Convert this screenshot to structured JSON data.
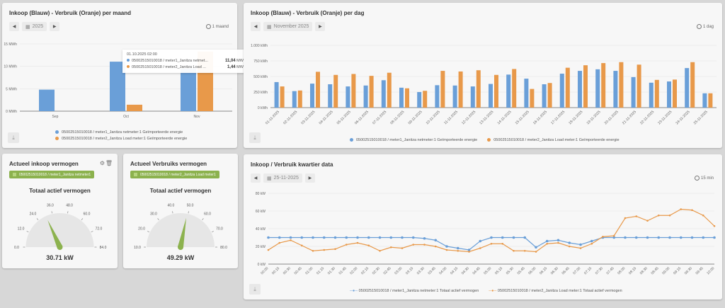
{
  "monthly": {
    "title": "Inkoop (Blauw) - Verbruik (Oranje) per maand",
    "date": "2025",
    "interval": "1 maand",
    "tooltip": {
      "date": "01.10.2025 02:00",
      "rows": [
        {
          "label": "05002515010018 / meter1_Janitza netmet...",
          "value": "11,04",
          "unit": "MWh"
        },
        {
          "label": "05002515010018 / meter2_Janitza Load ...",
          "value": "1,44",
          "unit": "MWh"
        }
      ]
    }
  },
  "daily": {
    "title": "Inkoop (Blauw) - Verbruik (Oranje) per dag",
    "date": "November 2025",
    "interval": "1 dag"
  },
  "gauge1": {
    "title": "Actueel inkoop vermogen",
    "chip": "05002515010018 / meter1_Janitza netmeter1",
    "subtitle": "Totaal actief vermogen",
    "value_label": "30.71 kW",
    "value": 30.71,
    "min": 0,
    "max": 84,
    "ticks": [
      "0.0",
      "12.0",
      "24.0",
      "36.0",
      "48.0",
      "60.0",
      "72.0",
      "84.0"
    ]
  },
  "gauge2": {
    "title": "Actueel Verbruiks vermogen",
    "chip": "05002515010018 / meter2_Janitza Load meter1",
    "subtitle": "Totaal actief vermogen",
    "value_label": "49.29 kW",
    "value": 49.29,
    "min": 10,
    "max": 80,
    "ticks": [
      "10.0",
      "20.0",
      "30.0",
      "40.0",
      "50.0",
      "60.0",
      "70.0",
      "80.0"
    ]
  },
  "quarter": {
    "title": "Inkoop / Verbruik kwartier data",
    "date": "25-11-2025",
    "interval": "15 min"
  },
  "colors": {
    "blue": "#6a9fd8",
    "orange": "#e8994a",
    "green": "#8cb24e"
  },
  "chart_data": [
    {
      "type": "bar",
      "title": "Inkoop (Blauw) - Verbruik (Oranje) per maand",
      "categories": [
        "Sep",
        "Oct",
        "Nov"
      ],
      "yticks": [
        "0 MWh",
        "5 MWh",
        "10 MWh",
        "15 MWh"
      ],
      "ylim": [
        0,
        15
      ],
      "series": [
        {
          "name": "05002515010018 / meter1_Janitza netmeter:1 Geïmporteerde energie",
          "values": [
            4.8,
            11.04,
            9.5
          ]
        },
        {
          "name": "05002515010018 / meter2_Janitza Load meter:1 Geïmporteerde energie",
          "values": [
            0,
            1.44,
            13.3
          ]
        }
      ]
    },
    {
      "type": "bar",
      "title": "Inkoop (Blauw) - Verbruik (Oranje) per dag",
      "categories": [
        "01-11-2025",
        "02-11-2025",
        "03-11-2025",
        "04-11-2025",
        "05-11-2025",
        "06-11-2025",
        "07-11-2025",
        "08-11-2025",
        "09-11-2025",
        "10-11-2025",
        "11-11-2025",
        "12-11-2025",
        "13-11-2025",
        "14-11-2025",
        "15-11-2025",
        "16-11-2025",
        "17-11-2025",
        "18-11-2025",
        "19-11-2025",
        "20-11-2025",
        "21-11-2025",
        "22-11-2025",
        "23-11-2025",
        "24-11-2025",
        "25-11-2025"
      ],
      "yticks": [
        "0 kWh",
        "250 kWh",
        "500 kWh",
        "750 kWh",
        "1.000 kWh"
      ],
      "ylim": [
        0,
        1000
      ],
      "series": [
        {
          "name": "05002515010018 / meter1_Janitza netmeter:1 Geïmporteerde energie",
          "values": [
            410,
            265,
            385,
            375,
            340,
            355,
            440,
            320,
            250,
            360,
            355,
            340,
            380,
            530,
            465,
            375,
            545,
            590,
            615,
            590,
            490,
            400,
            420,
            635,
            230
          ]
        },
        {
          "name": "05002515010018 / meter2_Janitza Load meter:1 Geïmporteerde energie",
          "values": [
            340,
            275,
            575,
            525,
            540,
            510,
            560,
            310,
            270,
            590,
            580,
            600,
            525,
            620,
            300,
            395,
            640,
            680,
            715,
            730,
            690,
            445,
            450,
            730,
            230
          ]
        }
      ]
    },
    {
      "type": "line",
      "title": "Inkoop / Verbruik kwartier data",
      "x": [
        "00:00",
        "00:15",
        "00:30",
        "00:45",
        "01:00",
        "01:15",
        "01:30",
        "01:45",
        "02:00",
        "02:15",
        "02:30",
        "02:45",
        "03:00",
        "03:15",
        "03:30",
        "03:45",
        "04:00",
        "04:15",
        "04:30",
        "04:45",
        "05:00",
        "05:15",
        "05:30",
        "05:45",
        "06:00",
        "06:15",
        "06:30",
        "06:45",
        "07:00",
        "07:15",
        "07:30",
        "07:45",
        "08:00",
        "08:15",
        "08:30",
        "08:45",
        "09:00",
        "09:15",
        "09:30",
        "09:45",
        "10:00"
      ],
      "yticks": [
        "0 kW",
        "20 kW",
        "40 kW",
        "60 kW",
        "80 kW"
      ],
      "ylim": [
        0,
        80
      ],
      "series": [
        {
          "name": "05002515010018 / meter1_Janitza netmeter:1 Totaal actief vermogen",
          "values": [
            30,
            30,
            30,
            30,
            30,
            30,
            30,
            30,
            30,
            30,
            30,
            30,
            30,
            30,
            29,
            27,
            20,
            18,
            16,
            26,
            30,
            30,
            30,
            30,
            19,
            26,
            27,
            24,
            22,
            26,
            30,
            30,
            30,
            30,
            30,
            30,
            30,
            30,
            30,
            30,
            30
          ]
        },
        {
          "name": "05002515010018 / meter2_Janitza Load meter:1 Totaal actief vermogen",
          "values": [
            16,
            24,
            27,
            21,
            15,
            16,
            17,
            22,
            24,
            21,
            15,
            19,
            18,
            22,
            22,
            20,
            16,
            15,
            14,
            18,
            23,
            23,
            15,
            15,
            14,
            23,
            24,
            20,
            18,
            23,
            31,
            32,
            52,
            54,
            49,
            55,
            55,
            62,
            61,
            55,
            43
          ]
        }
      ]
    }
  ]
}
